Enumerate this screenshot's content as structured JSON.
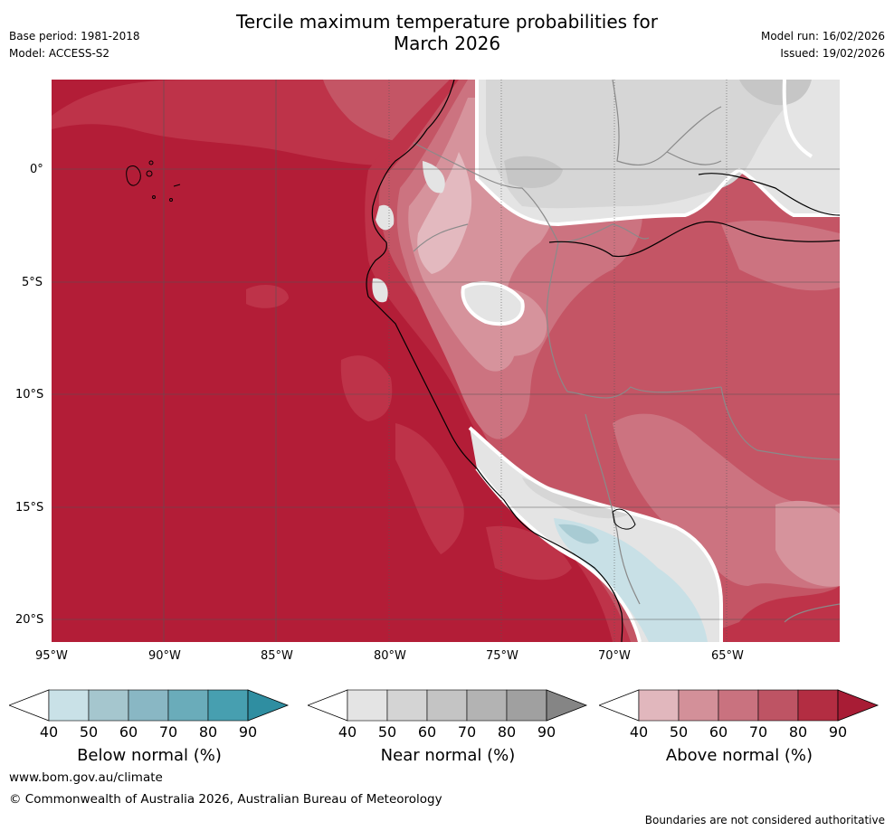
{
  "title_line1": "Tercile maximum temperature probabilities for",
  "title_line2": "March 2026",
  "base_period": "Base period: 1981-2018",
  "model": "Model: ACCESS-S2",
  "model_run": "Model run: 16/02/2026",
  "issued": "Issued: 19/02/2026",
  "map": {
    "lat_labels": [
      "0°",
      "5°S",
      "10°S",
      "15°S",
      "20°S"
    ],
    "lon_labels": [
      "95°W",
      "90°W",
      "85°W",
      "80°W",
      "75°W",
      "70°W",
      "65°W"
    ]
  },
  "colorbars": [
    {
      "id": "below",
      "title": "Below normal (%)",
      "ticks": [
        "40",
        "50",
        "60",
        "70",
        "80",
        "90"
      ],
      "colors": [
        "#c9e1e7",
        "#a5c6ce",
        "#89b7c4",
        "#6aacba",
        "#479fb0",
        "#2f8ea1"
      ]
    },
    {
      "id": "near",
      "title": "Near normal (%)",
      "ticks": [
        "40",
        "50",
        "60",
        "70",
        "80",
        "90"
      ],
      "colors": [
        "#e4e4e4",
        "#d4d4d4",
        "#c4c4c4",
        "#b3b3b3",
        "#a0a0a0",
        "#858585"
      ]
    },
    {
      "id": "above",
      "title": "Above normal (%)",
      "ticks": [
        "40",
        "50",
        "60",
        "70",
        "80",
        "90"
      ],
      "colors": [
        "#e1b7bd",
        "#d39099",
        "#c9727f",
        "#be5464",
        "#b32d42",
        "#a81c35"
      ]
    }
  ],
  "colors": {
    "ocean_hot": "#b31d37",
    "above_80": "#be3349",
    "above_70": "#c45565",
    "above_60": "#cc7380",
    "above_50": "#d6939c",
    "above_40": "#e3b9bf",
    "near_40": "#e4e4e4",
    "near_50": "#d6d6d6",
    "near_60": "#c6c6c6",
    "near_70": "#b0b0b0",
    "below_40": "#c8e0e6",
    "below_50": "#a8cbd3"
  },
  "footer": {
    "url": "www.bom.gov.au/climate",
    "copyright": "© Commonwealth of Australia 2026, Australian Bureau of Meteorology",
    "disclaimer": "Boundaries are not considered authoritative"
  }
}
